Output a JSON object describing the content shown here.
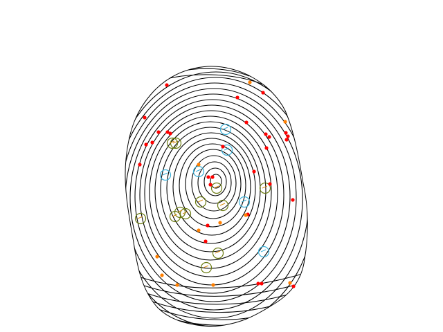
{
  "colors": {
    "background": "#ffffff",
    "ridge": "#000000",
    "dot_primary": "#ff0000",
    "dot_secondary": "#ff7f00",
    "circle_cyan": "#3bb0d8",
    "circle_olive": "#6a7a10",
    "circle_orange": "#d88a10"
  },
  "legend": []
}
